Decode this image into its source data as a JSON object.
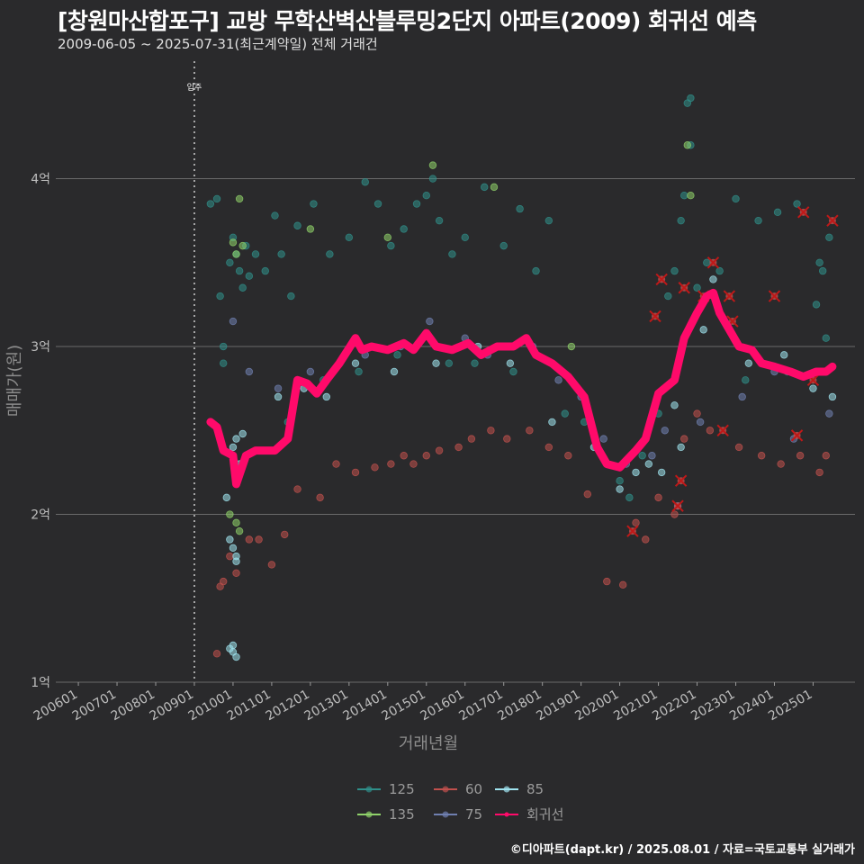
{
  "header": {
    "title": "[창원마산합포구] 교방 무학산벽산블루밍2단지 아파트(2009) 회귀선 예측",
    "subtitle": "2009-06-05 ~ 2025-07-31(최근계약일) 전체 거래건"
  },
  "caption": "©디아파트(dapt.kr) / 2025.08.01 / 자료=국토교통부 실거래가",
  "colors": {
    "background": "#2a2a2c",
    "grid": "#6a6a6a",
    "area_125": "#2f8f8a",
    "area_135": "#8fd16a",
    "area_60": "#c0504d",
    "area_75": "#6f7fb0",
    "area_85": "#9fe3ef",
    "regression": "#ff0a6a",
    "forecast_marker": "#c01818"
  },
  "chart_data": {
    "type": "scatter",
    "xlabel": "거래년월",
    "ylabel": "매매가(원)",
    "x_range": [
      "2005-06",
      "2026-02"
    ],
    "y_range": [
      1.0,
      4.7
    ],
    "y_ticks": [
      {
        "value": 1,
        "label": "1억"
      },
      {
        "value": 2,
        "label": "2억"
      },
      {
        "value": 3,
        "label": "3억"
      },
      {
        "value": 4,
        "label": "4억"
      }
    ],
    "x_ticks": [
      "200601",
      "200701",
      "200801",
      "200901",
      "201001",
      "201101",
      "201201",
      "201301",
      "201401",
      "201501",
      "201601",
      "201701",
      "201801",
      "201901",
      "202001",
      "202101",
      "202201",
      "202301",
      "202401",
      "202501"
    ],
    "grid": "horizontal major lines",
    "legend_position": "bottom",
    "annotation": {
      "label": "입주",
      "date": "2009-01"
    },
    "legend": [
      {
        "key": "125",
        "label": "125",
        "color": "#2f8f8a"
      },
      {
        "key": "60",
        "label": "60",
        "color": "#c0504d"
      },
      {
        "key": "85",
        "label": "85",
        "color": "#9fe3ef"
      },
      {
        "key": "135",
        "label": "135",
        "color": "#8fd16a"
      },
      {
        "key": "75",
        "label": "75",
        "color": "#6f7fb0"
      },
      {
        "key": "reg",
        "label": "회귀선",
        "color": "#ff0a6a"
      }
    ],
    "series": [
      {
        "name": "125",
        "points": [
          [
            "2009-06",
            3.85
          ],
          [
            "2009-08",
            3.88
          ],
          [
            "2009-09",
            3.3
          ],
          [
            "2009-10",
            3.0
          ],
          [
            "2009-10",
            2.9
          ],
          [
            "2009-12",
            3.5
          ],
          [
            "2010-01",
            3.65
          ],
          [
            "2010-02",
            3.55
          ],
          [
            "2010-03",
            3.45
          ],
          [
            "2010-04",
            3.35
          ],
          [
            "2010-05",
            3.6
          ],
          [
            "2010-06",
            3.42
          ],
          [
            "2010-08",
            3.55
          ],
          [
            "2010-11",
            3.45
          ],
          [
            "2011-02",
            3.78
          ],
          [
            "2011-04",
            3.55
          ],
          [
            "2011-07",
            3.3
          ],
          [
            "2011-09",
            3.72
          ],
          [
            "2012-02",
            3.85
          ],
          [
            "2012-07",
            3.55
          ],
          [
            "2013-01",
            3.65
          ],
          [
            "2013-06",
            3.98
          ],
          [
            "2013-10",
            3.85
          ],
          [
            "2014-02",
            3.6
          ],
          [
            "2014-06",
            3.7
          ],
          [
            "2014-10",
            3.85
          ],
          [
            "2015-01",
            3.9
          ],
          [
            "2015-03",
            4.0
          ],
          [
            "2015-05",
            3.75
          ],
          [
            "2015-09",
            3.55
          ],
          [
            "2016-01",
            3.65
          ],
          [
            "2016-07",
            3.95
          ],
          [
            "2017-01",
            3.6
          ],
          [
            "2017-06",
            3.82
          ],
          [
            "2017-11",
            3.45
          ],
          [
            "2018-03",
            3.75
          ],
          [
            "2011-06",
            2.55
          ],
          [
            "2012-05",
            2.8
          ],
          [
            "2013-04",
            2.85
          ],
          [
            "2014-04",
            2.95
          ],
          [
            "2015-08",
            2.9
          ],
          [
            "2016-04",
            2.9
          ],
          [
            "2017-04",
            2.85
          ],
          [
            "2018-08",
            2.6
          ],
          [
            "2019-02",
            2.55
          ],
          [
            "2020-01",
            2.2
          ],
          [
            "2020-04",
            2.1
          ],
          [
            "2020-08",
            2.35
          ],
          [
            "2021-01",
            2.6
          ],
          [
            "2021-04",
            3.3
          ],
          [
            "2021-06",
            3.45
          ],
          [
            "2021-08",
            3.75
          ],
          [
            "2021-09",
            3.9
          ],
          [
            "2021-10",
            4.45
          ],
          [
            "2021-11",
            4.48
          ],
          [
            "2021-11",
            4.2
          ],
          [
            "2022-01",
            3.35
          ],
          [
            "2022-04",
            3.5
          ],
          [
            "2022-08",
            3.45
          ],
          [
            "2023-01",
            3.88
          ],
          [
            "2023-08",
            3.75
          ],
          [
            "2024-02",
            3.8
          ],
          [
            "2024-08",
            3.85
          ],
          [
            "2025-03",
            3.5
          ],
          [
            "2025-04",
            3.45
          ],
          [
            "2025-06",
            3.65
          ],
          [
            "2023-04",
            2.8
          ],
          [
            "2024-05",
            2.85
          ],
          [
            "2025-02",
            3.25
          ],
          [
            "2025-05",
            3.05
          ]
        ]
      },
      {
        "name": "135",
        "points": [
          [
            "2010-01",
            3.62
          ],
          [
            "2010-03",
            3.88
          ],
          [
            "2010-04",
            3.6
          ],
          [
            "2010-02",
            3.55
          ],
          [
            "2012-01",
            3.7
          ],
          [
            "2015-03",
            4.08
          ],
          [
            "2016-10",
            3.95
          ],
          [
            "2014-01",
            3.65
          ],
          [
            "2009-12",
            2.0
          ],
          [
            "2010-02",
            1.95
          ],
          [
            "2010-03",
            1.9
          ],
          [
            "2021-10",
            4.2
          ],
          [
            "2021-11",
            3.9
          ],
          [
            "2018-10",
            3.0
          ]
        ]
      },
      {
        "name": "60",
        "points": [
          [
            "2009-08",
            1.17
          ],
          [
            "2009-09",
            1.57
          ],
          [
            "2009-10",
            1.6
          ],
          [
            "2009-12",
            1.75
          ],
          [
            "2010-02",
            1.65
          ],
          [
            "2010-06",
            1.85
          ],
          [
            "2010-09",
            1.85
          ],
          [
            "2011-01",
            1.7
          ],
          [
            "2011-05",
            1.88
          ],
          [
            "2011-09",
            2.15
          ],
          [
            "2012-04",
            2.1
          ],
          [
            "2012-09",
            2.3
          ],
          [
            "2013-03",
            2.25
          ],
          [
            "2013-09",
            2.28
          ],
          [
            "2014-02",
            2.3
          ],
          [
            "2014-06",
            2.35
          ],
          [
            "2014-09",
            2.3
          ],
          [
            "2015-01",
            2.35
          ],
          [
            "2015-05",
            2.38
          ],
          [
            "2015-11",
            2.4
          ],
          [
            "2016-03",
            2.45
          ],
          [
            "2016-09",
            2.5
          ],
          [
            "2017-02",
            2.45
          ],
          [
            "2017-09",
            2.5
          ],
          [
            "2018-03",
            2.4
          ],
          [
            "2018-09",
            2.35
          ],
          [
            "2019-03",
            2.12
          ],
          [
            "2019-09",
            1.6
          ],
          [
            "2020-02",
            1.58
          ],
          [
            "2020-06",
            1.95
          ],
          [
            "2020-09",
            1.85
          ],
          [
            "2021-01",
            2.1
          ],
          [
            "2021-06",
            2.0
          ],
          [
            "2021-09",
            2.45
          ],
          [
            "2022-01",
            2.6
          ],
          [
            "2022-05",
            2.5
          ],
          [
            "2023-02",
            2.4
          ],
          [
            "2023-09",
            2.35
          ],
          [
            "2024-03",
            2.3
          ],
          [
            "2024-09",
            2.35
          ],
          [
            "2025-03",
            2.25
          ],
          [
            "2025-05",
            2.35
          ]
        ]
      },
      {
        "name": "75",
        "points": [
          [
            "2010-01",
            3.15
          ],
          [
            "2010-06",
            2.85
          ],
          [
            "2011-03",
            2.75
          ],
          [
            "2012-01",
            2.85
          ],
          [
            "2013-06",
            2.95
          ],
          [
            "2014-05",
            3.0
          ],
          [
            "2015-02",
            3.15
          ],
          [
            "2016-01",
            3.05
          ],
          [
            "2016-08",
            2.95
          ],
          [
            "2017-10",
            3.0
          ],
          [
            "2018-06",
            2.8
          ],
          [
            "2019-01",
            2.7
          ],
          [
            "2019-08",
            2.45
          ],
          [
            "2020-03",
            2.3
          ],
          [
            "2020-11",
            2.35
          ],
          [
            "2021-03",
            2.5
          ],
          [
            "2021-07",
            2.05
          ],
          [
            "2022-02",
            2.55
          ],
          [
            "2023-03",
            2.7
          ],
          [
            "2024-01",
            2.85
          ],
          [
            "2024-07",
            2.45
          ],
          [
            "2025-06",
            2.6
          ]
        ]
      },
      {
        "name": "85",
        "points": [
          [
            "2009-12",
            1.2
          ],
          [
            "2010-01",
            1.22
          ],
          [
            "2010-01",
            1.18
          ],
          [
            "2010-02",
            1.15
          ],
          [
            "2010-01",
            2.4
          ],
          [
            "2010-02",
            2.45
          ],
          [
            "2010-03",
            2.3
          ],
          [
            "2010-04",
            2.48
          ],
          [
            "2010-05",
            2.35
          ],
          [
            "2009-11",
            2.1
          ],
          [
            "2009-12",
            1.85
          ],
          [
            "2010-01",
            1.8
          ],
          [
            "2010-02",
            1.72
          ],
          [
            "2010-02",
            1.75
          ],
          [
            "2011-03",
            2.7
          ],
          [
            "2011-11",
            2.75
          ],
          [
            "2012-06",
            2.7
          ],
          [
            "2013-03",
            2.9
          ],
          [
            "2014-03",
            2.85
          ],
          [
            "2015-04",
            2.9
          ],
          [
            "2016-05",
            3.0
          ],
          [
            "2017-03",
            2.9
          ],
          [
            "2018-04",
            2.55
          ],
          [
            "2019-05",
            2.4
          ],
          [
            "2020-01",
            2.15
          ],
          [
            "2020-06",
            2.25
          ],
          [
            "2020-10",
            2.3
          ],
          [
            "2021-02",
            2.25
          ],
          [
            "2021-06",
            2.65
          ],
          [
            "2021-08",
            2.4
          ],
          [
            "2022-03",
            3.1
          ],
          [
            "2022-06",
            3.4
          ],
          [
            "2023-05",
            2.9
          ],
          [
            "2024-04",
            2.95
          ],
          [
            "2025-01",
            2.75
          ],
          [
            "2025-07",
            2.7
          ]
        ]
      }
    ],
    "forecast_points": [
      [
        "2020-05",
        1.9
      ],
      [
        "2020-12",
        3.18
      ],
      [
        "2021-02",
        3.4
      ],
      [
        "2021-07",
        2.05
      ],
      [
        "2021-08",
        2.2
      ],
      [
        "2021-09",
        3.35
      ],
      [
        "2022-03",
        3.3
      ],
      [
        "2022-06",
        3.5
      ],
      [
        "2022-09",
        2.5
      ],
      [
        "2022-11",
        3.3
      ],
      [
        "2022-12",
        3.15
      ],
      [
        "2024-01",
        3.3
      ],
      [
        "2024-08",
        2.47
      ],
      [
        "2024-10",
        3.8
      ],
      [
        "2025-01",
        2.8
      ],
      [
        "2025-07",
        3.75
      ]
    ],
    "regression": [
      [
        "2009-06",
        2.55
      ],
      [
        "2009-08",
        2.52
      ],
      [
        "2009-10",
        2.38
      ],
      [
        "2010-01",
        2.35
      ],
      [
        "2010-02",
        2.18
      ],
      [
        "2010-05",
        2.35
      ],
      [
        "2010-08",
        2.38
      ],
      [
        "2011-02",
        2.38
      ],
      [
        "2011-06",
        2.45
      ],
      [
        "2011-09",
        2.8
      ],
      [
        "2011-12",
        2.78
      ],
      [
        "2012-03",
        2.72
      ],
      [
        "2012-06",
        2.8
      ],
      [
        "2012-10",
        2.9
      ],
      [
        "2013-03",
        3.05
      ],
      [
        "2013-05",
        2.98
      ],
      [
        "2013-08",
        3.0
      ],
      [
        "2014-01",
        2.98
      ],
      [
        "2014-06",
        3.02
      ],
      [
        "2014-09",
        2.98
      ],
      [
        "2015-01",
        3.08
      ],
      [
        "2015-04",
        3.0
      ],
      [
        "2015-09",
        2.98
      ],
      [
        "2016-02",
        3.02
      ],
      [
        "2016-06",
        2.95
      ],
      [
        "2016-11",
        3.0
      ],
      [
        "2017-04",
        3.0
      ],
      [
        "2017-08",
        3.05
      ],
      [
        "2017-11",
        2.95
      ],
      [
        "2018-04",
        2.9
      ],
      [
        "2018-09",
        2.82
      ],
      [
        "2019-02",
        2.7
      ],
      [
        "2019-06",
        2.4
      ],
      [
        "2019-09",
        2.3
      ],
      [
        "2020-01",
        2.28
      ],
      [
        "2020-06",
        2.38
      ],
      [
        "2020-09",
        2.45
      ],
      [
        "2021-01",
        2.72
      ],
      [
        "2021-06",
        2.8
      ],
      [
        "2021-09",
        3.05
      ],
      [
        "2022-01",
        3.2
      ],
      [
        "2022-04",
        3.3
      ],
      [
        "2022-06",
        3.32
      ],
      [
        "2022-08",
        3.2
      ],
      [
        "2022-11",
        3.1
      ],
      [
        "2023-02",
        3.0
      ],
      [
        "2023-06",
        2.98
      ],
      [
        "2023-09",
        2.9
      ],
      [
        "2024-01",
        2.88
      ],
      [
        "2024-06",
        2.85
      ],
      [
        "2024-10",
        2.82
      ],
      [
        "2025-02",
        2.85
      ],
      [
        "2025-05",
        2.85
      ],
      [
        "2025-07",
        2.88
      ]
    ]
  }
}
